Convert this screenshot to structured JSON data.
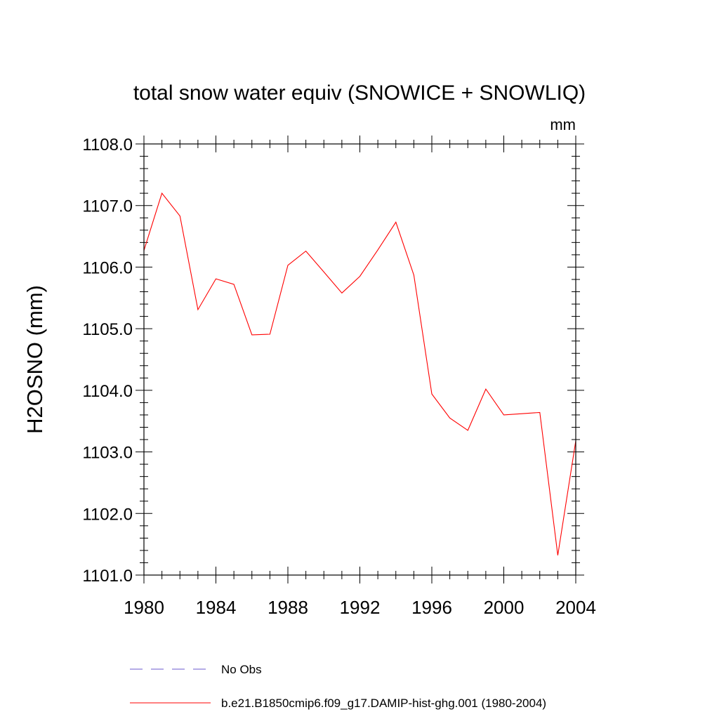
{
  "chart_data": {
    "type": "line",
    "title": "total snow water equiv (SNOWICE + SNOWLIQ)",
    "units_label": "mm",
    "ylabel": "H2OSNO  (mm)",
    "xlabel": "",
    "xlim": [
      1980,
      2004
    ],
    "ylim": [
      1101.0,
      1108.0
    ],
    "x_ticks": [
      1980,
      1984,
      1988,
      1992,
      1996,
      2000,
      2004
    ],
    "y_ticks": [
      1101.0,
      1102.0,
      1103.0,
      1104.0,
      1105.0,
      1106.0,
      1107.0,
      1108.0
    ],
    "y_tick_labels": [
      "1101.0",
      "1102.0",
      "1103.0",
      "1104.0",
      "1105.0",
      "1106.0",
      "1107.0",
      "1108.0"
    ],
    "x_tick_labels": [
      "1980",
      "1984",
      "1988",
      "1992",
      "1996",
      "2000",
      "2004"
    ],
    "grid": false,
    "legend_position": "bottom",
    "legend": [
      {
        "label": "No Obs",
        "color": "#6a5acd",
        "style": "dashed"
      },
      {
        "label": "b.e21.B1850cmip6.f09_g17.DAMIP-hist-ghg.001 (1980-2004)",
        "color": "#ff0000",
        "style": "solid"
      }
    ],
    "series": [
      {
        "name": "b.e21.B1850cmip6.f09_g17.DAMIP-hist-ghg.001 (1980-2004)",
        "color": "#ff0000",
        "x": [
          1980,
          1981,
          1982,
          1983,
          1984,
          1985,
          1986,
          1987,
          1988,
          1989,
          1990,
          1991,
          1992,
          1993,
          1994,
          1995,
          1996,
          1997,
          1998,
          1999,
          2000,
          2001,
          2002,
          2003,
          2004
        ],
        "y": [
          1106.27,
          1107.2,
          1106.83,
          1105.31,
          1105.81,
          1105.72,
          1104.9,
          1104.91,
          1106.03,
          1106.26,
          1105.92,
          1105.58,
          1105.85,
          1106.28,
          1106.73,
          1105.87,
          1103.94,
          1103.55,
          1103.35,
          1104.02,
          1103.6,
          1103.62,
          1103.64,
          1101.32,
          1103.18
        ]
      }
    ]
  }
}
